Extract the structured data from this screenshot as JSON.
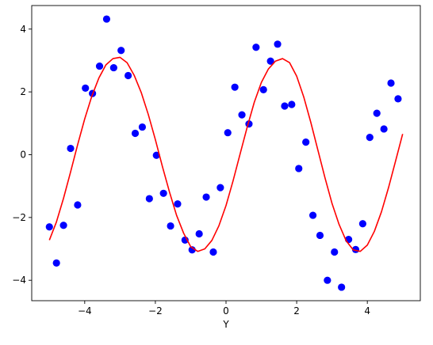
{
  "chart_data": {
    "type": "scatter",
    "title": "",
    "xlabel": "Y",
    "ylabel": "",
    "xlim": [
      -5.5,
      5.5
    ],
    "ylim": [
      -4.65,
      4.75
    ],
    "grid": false,
    "x_ticks": [
      {
        "value": -4,
        "label": "−4"
      },
      {
        "value": -2,
        "label": "−2"
      },
      {
        "value": 0,
        "label": "0"
      },
      {
        "value": 2,
        "label": "2"
      },
      {
        "value": 4,
        "label": "4"
      }
    ],
    "y_ticks": [
      {
        "value": -4,
        "label": "−4"
      },
      {
        "value": -2,
        "label": "−2"
      },
      {
        "value": 0,
        "label": "0"
      },
      {
        "value": 2,
        "label": "2"
      },
      {
        "value": 4,
        "label": "4"
      }
    ],
    "series": [
      {
        "kind": "scatter",
        "color": "#0000ff",
        "points": [
          [
            -5.0,
            -2.3
          ],
          [
            -4.8,
            -3.45
          ],
          [
            -4.6,
            -2.25
          ],
          [
            -4.4,
            0.2
          ],
          [
            -4.2,
            -1.6
          ],
          [
            -3.98,
            2.12
          ],
          [
            -3.78,
            1.95
          ],
          [
            -3.58,
            2.82
          ],
          [
            -3.38,
            4.32
          ],
          [
            -3.18,
            2.77
          ],
          [
            -2.97,
            3.32
          ],
          [
            -2.77,
            2.52
          ],
          [
            -2.57,
            0.68
          ],
          [
            -2.37,
            0.88
          ],
          [
            -2.17,
            -1.4
          ],
          [
            -1.97,
            -0.02
          ],
          [
            -1.77,
            -1.23
          ],
          [
            -1.57,
            -2.27
          ],
          [
            -1.37,
            -1.57
          ],
          [
            -1.16,
            -2.72
          ],
          [
            -0.96,
            -3.03
          ],
          [
            -0.76,
            -2.52
          ],
          [
            -0.56,
            -1.35
          ],
          [
            -0.36,
            -3.1
          ],
          [
            -0.16,
            -1.05
          ],
          [
            0.05,
            0.7
          ],
          [
            0.25,
            2.15
          ],
          [
            0.45,
            1.27
          ],
          [
            0.65,
            0.98
          ],
          [
            0.85,
            3.42
          ],
          [
            1.06,
            2.07
          ],
          [
            1.26,
            2.98
          ],
          [
            1.46,
            3.52
          ],
          [
            1.66,
            1.55
          ],
          [
            1.86,
            1.6
          ],
          [
            2.06,
            -0.44
          ],
          [
            2.26,
            0.4
          ],
          [
            2.46,
            -1.93
          ],
          [
            2.66,
            -2.57
          ],
          [
            2.87,
            -4.0
          ],
          [
            3.07,
            -3.1
          ],
          [
            3.27,
            -4.22
          ],
          [
            3.47,
            -2.7
          ],
          [
            3.67,
            -3.02
          ],
          [
            3.87,
            -2.2
          ],
          [
            4.07,
            0.55
          ],
          [
            4.27,
            1.32
          ],
          [
            4.47,
            0.82
          ],
          [
            4.67,
            2.28
          ],
          [
            4.87,
            1.78
          ]
        ]
      },
      {
        "kind": "line",
        "color": "#ff0000",
        "points": [
          [
            -5.0,
            -2.72
          ],
          [
            -4.8,
            -2.14
          ],
          [
            -4.6,
            -1.39
          ],
          [
            -4.4,
            -0.55
          ],
          [
            -4.2,
            0.32
          ],
          [
            -4.0,
            1.14
          ],
          [
            -3.8,
            1.86
          ],
          [
            -3.6,
            2.44
          ],
          [
            -3.4,
            2.86
          ],
          [
            -3.2,
            3.06
          ],
          [
            -3.0,
            3.1
          ],
          [
            -2.8,
            2.93
          ],
          [
            -2.6,
            2.53
          ],
          [
            -2.4,
            1.98
          ],
          [
            -2.2,
            1.28
          ],
          [
            -2.0,
            0.48
          ],
          [
            -1.8,
            -0.38
          ],
          [
            -1.6,
            -1.19
          ],
          [
            -1.4,
            -1.93
          ],
          [
            -1.2,
            -2.5
          ],
          [
            -1.0,
            -2.93
          ],
          [
            -0.8,
            -3.08
          ],
          [
            -0.6,
            -3.0
          ],
          [
            -0.4,
            -2.73
          ],
          [
            -0.2,
            -2.26
          ],
          [
            0.0,
            -1.62
          ],
          [
            0.2,
            -0.83
          ],
          [
            0.4,
            0.03
          ],
          [
            0.6,
            0.88
          ],
          [
            0.8,
            1.67
          ],
          [
            1.0,
            2.3
          ],
          [
            1.2,
            2.73
          ],
          [
            1.4,
            2.98
          ],
          [
            1.6,
            3.06
          ],
          [
            1.8,
            2.93
          ],
          [
            2.0,
            2.5
          ],
          [
            2.2,
            1.84
          ],
          [
            2.4,
            1.03
          ],
          [
            2.6,
            0.15
          ],
          [
            2.8,
            -0.73
          ],
          [
            3.0,
            -1.55
          ],
          [
            3.2,
            -2.22
          ],
          [
            3.4,
            -2.74
          ],
          [
            3.6,
            -3.03
          ],
          [
            3.8,
            -3.08
          ],
          [
            4.0,
            -2.88
          ],
          [
            4.2,
            -2.44
          ],
          [
            4.4,
            -1.82
          ],
          [
            4.6,
            -1.05
          ],
          [
            4.8,
            -0.2
          ],
          [
            5.0,
            0.66
          ]
        ]
      }
    ]
  }
}
